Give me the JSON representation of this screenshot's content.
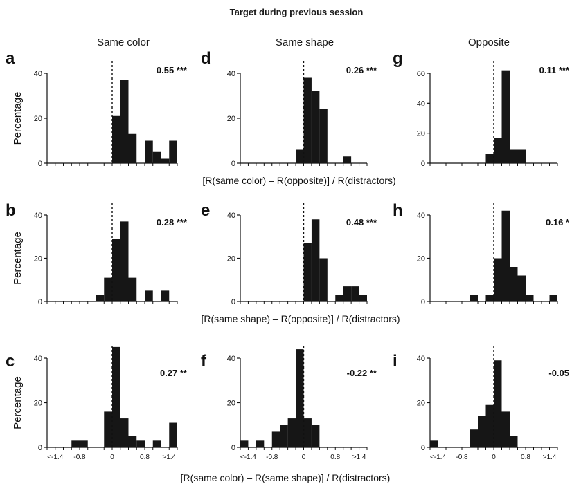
{
  "figure": {
    "header": "Target during previous session",
    "columns": [
      "Same color",
      "Same shape",
      "Opposite"
    ],
    "row_xlabels": [
      "[R(same color) – R(opposite)] / R(distractors)",
      "[R(same shape) – R(opposite)] / R(distractors)",
      "[R(same color) – R(same shape)] / R(distractors)"
    ],
    "ylabel": "Percentage",
    "xtick_labels": [
      "<-1.4",
      "-0.8",
      "0",
      "0.8",
      ">1.4"
    ]
  },
  "chart_data": [
    {
      "panel": "a",
      "type": "bar",
      "stat": "0.55",
      "stars": "***",
      "ylim": [
        0,
        40
      ],
      "yticks": [
        0,
        20,
        40
      ],
      "values": [
        0,
        0,
        0,
        0,
        0,
        0,
        0,
        0,
        21,
        37,
        13,
        0,
        10,
        5,
        2,
        10
      ]
    },
    {
      "panel": "d",
      "type": "bar",
      "stat": "0.26",
      "stars": "***",
      "ylim": [
        0,
        40
      ],
      "yticks": [
        0,
        20,
        40
      ],
      "values": [
        0,
        0,
        0,
        0,
        0,
        0,
        0,
        6,
        38,
        32,
        24,
        0,
        0,
        3,
        0,
        0
      ]
    },
    {
      "panel": "g",
      "type": "bar",
      "stat": "0.11",
      "stars": "***",
      "ylim": [
        0,
        60
      ],
      "yticks": [
        0,
        20,
        40,
        60
      ],
      "values": [
        0,
        0,
        0,
        0,
        0,
        0,
        0,
        6,
        17,
        62,
        9,
        9,
        0,
        0,
        0,
        0
      ]
    },
    {
      "panel": "b",
      "type": "bar",
      "stat": "0.28",
      "stars": "***",
      "ylim": [
        0,
        40
      ],
      "yticks": [
        0,
        20,
        40
      ],
      "values": [
        0,
        0,
        0,
        0,
        0,
        0,
        3,
        11,
        29,
        37,
        11,
        0,
        5,
        0,
        5,
        0
      ]
    },
    {
      "panel": "e",
      "type": "bar",
      "stat": "0.48",
      "stars": "***",
      "ylim": [
        0,
        40
      ],
      "yticks": [
        0,
        20,
        40
      ],
      "values": [
        0,
        0,
        0,
        0,
        0,
        0,
        0,
        0,
        27,
        38,
        20,
        0,
        3,
        7,
        7,
        3
      ]
    },
    {
      "panel": "h",
      "type": "bar",
      "stat": "0.16",
      "stars": "*",
      "ylim": [
        0,
        40
      ],
      "yticks": [
        0,
        20,
        40
      ],
      "values": [
        0,
        0,
        0,
        0,
        0,
        3,
        0,
        3,
        20,
        42,
        16,
        12,
        3,
        0,
        0,
        3
      ]
    },
    {
      "panel": "c",
      "type": "bar",
      "stat": "0.27",
      "stars": "**",
      "ylim": [
        0,
        40
      ],
      "yticks": [
        0,
        20,
        40
      ],
      "values": [
        0,
        0,
        0,
        3,
        3,
        0,
        0,
        16,
        45,
        13,
        5,
        3,
        0,
        3,
        0,
        11
      ]
    },
    {
      "panel": "f",
      "type": "bar",
      "stat": "-0.22",
      "stars": "**",
      "ylim": [
        0,
        40
      ],
      "yticks": [
        0,
        20,
        40
      ],
      "values": [
        3,
        0,
        3,
        0,
        7,
        10,
        13,
        44,
        13,
        10,
        0,
        0,
        0,
        0,
        0,
        0
      ]
    },
    {
      "panel": "i",
      "type": "bar",
      "stat": "-0.05",
      "stars": "",
      "ylim": [
        0,
        40
      ],
      "yticks": [
        0,
        20,
        40
      ],
      "values": [
        3,
        0,
        0,
        0,
        0,
        8,
        14,
        19,
        39,
        16,
        5,
        0,
        0,
        0,
        0,
        0
      ]
    }
  ]
}
